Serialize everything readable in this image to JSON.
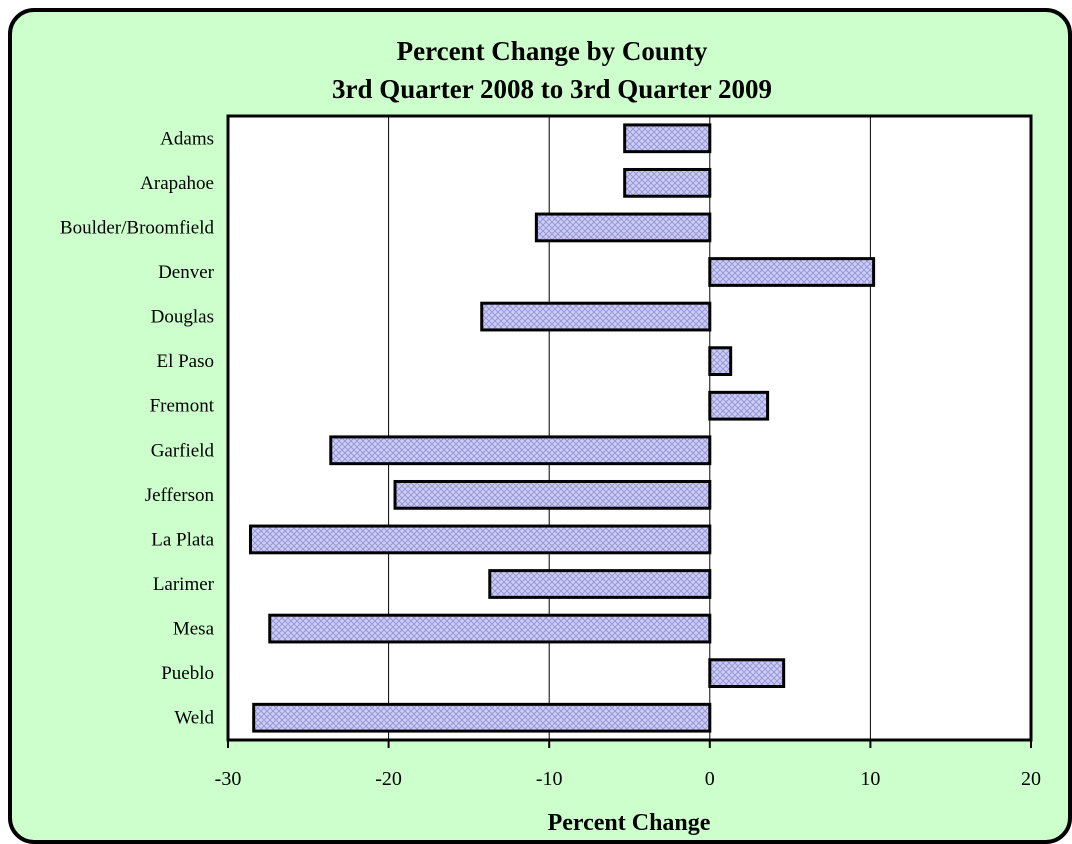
{
  "chart_data": {
    "type": "bar",
    "orientation": "horizontal",
    "title": "Percent Change by County",
    "subtitle": "3rd Quarter 2008 to 3rd Quarter 2009",
    "xlabel": "Percent Change",
    "ylabel": "",
    "xlim": [
      -30,
      20
    ],
    "xticks": [
      -30,
      -20,
      -10,
      0,
      10,
      20
    ],
    "grid": "vertical",
    "legend": "none",
    "categories": [
      "Adams",
      "Arapahoe",
      "Boulder/Broomfield",
      "Denver",
      "Douglas",
      "El Paso",
      "Fremont",
      "Garfield",
      "Jefferson",
      "La Plata",
      "Larimer",
      "Mesa",
      "Pueblo",
      "Weld"
    ],
    "values": [
      -5.3,
      -5.3,
      -10.8,
      10.2,
      -14.2,
      1.3,
      3.6,
      -23.6,
      -19.6,
      -28.6,
      -13.7,
      -27.4,
      4.6,
      -28.4
    ],
    "colors": {
      "background": "#ccffcc",
      "plot_area": "#ffffff",
      "bar_fill": "#ccccff",
      "bar_hatch": "#9999cc",
      "bar_border": "#000000"
    }
  }
}
